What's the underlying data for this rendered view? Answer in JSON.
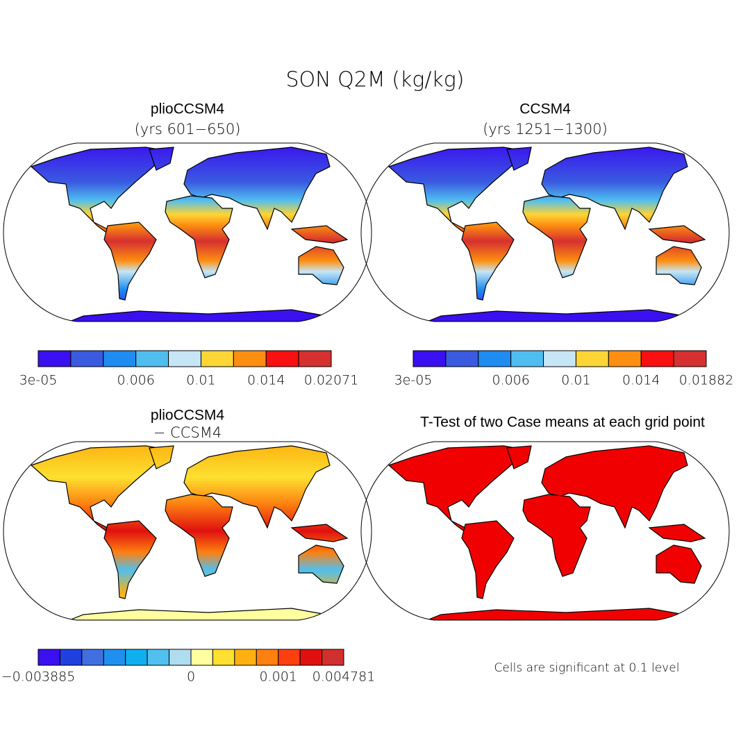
{
  "title": "SON Q2M (kg/kg)",
  "panels": [
    {
      "title": "plioCCSM4",
      "subtitle": "(yrs 601−650)",
      "colorbar": {
        "colors": [
          "#3a10f0",
          "#3a5be0",
          "#1e8cf0",
          "#4fbdf0",
          "#c6e6f5",
          "#fdd535",
          "#fd8f10",
          "#f91010",
          "#d63030"
        ],
        "labels": [
          "3e-05",
          null,
          null,
          "0.006",
          null,
          "0.01",
          null,
          "0.014",
          null,
          "0.02071"
        ]
      }
    },
    {
      "title": "CCSM4",
      "subtitle": "(yrs 1251−1300)",
      "colorbar": {
        "colors": [
          "#3a10f0",
          "#3a5be0",
          "#1e8cf0",
          "#4fbdf0",
          "#c6e6f5",
          "#fdd535",
          "#fd8f10",
          "#f91010",
          "#d63030"
        ],
        "labels": [
          "3e-05",
          null,
          null,
          "0.006",
          null,
          "0.01",
          null,
          "0.014",
          null,
          "0.01882"
        ]
      }
    },
    {
      "title": "plioCCSM4",
      "subtitle": "− CCSM4",
      "colorbar": {
        "colors": [
          "#3a10f0",
          "#2040e0",
          "#4070e0",
          "#2090f0",
          "#10b0f0",
          "#50c0f0",
          "#b0dcf0",
          "#ffffa0",
          "#fde030",
          "#fdb010",
          "#fd8010",
          "#fd4010",
          "#e01010",
          "#d03030"
        ],
        "labels": [
          "−0.003885",
          null,
          null,
          null,
          null,
          null,
          null,
          "0",
          null,
          null,
          null,
          "0.001",
          null,
          null,
          "0.004781"
        ]
      }
    },
    {
      "title": "T-Test of two Case means at each grid point",
      "note": "Cells are significant at 0.1 level"
    }
  ]
}
